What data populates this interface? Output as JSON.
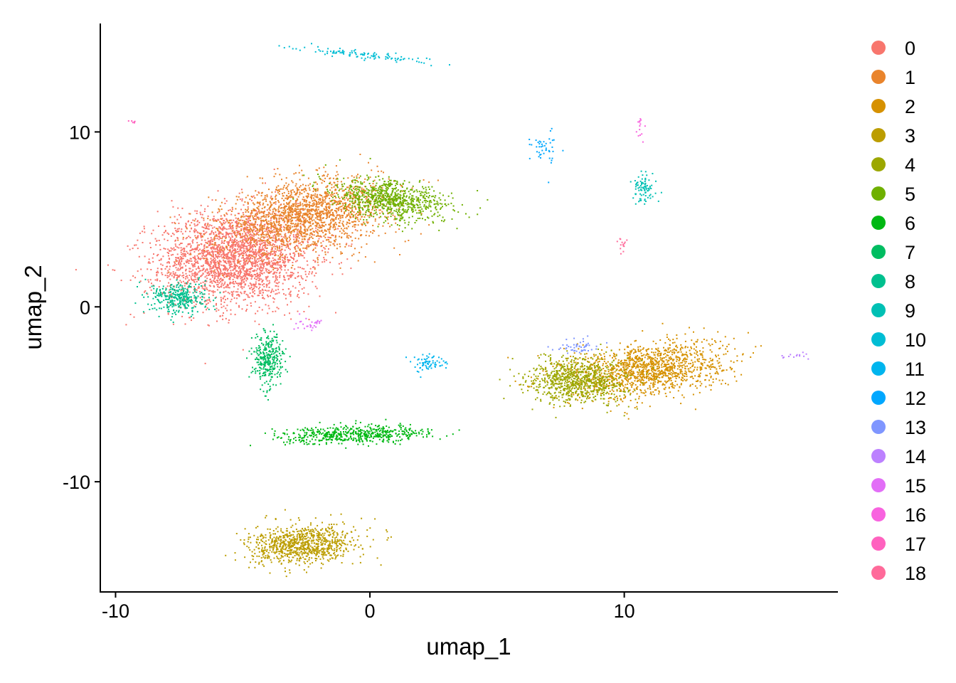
{
  "chart_data": {
    "type": "scatter",
    "title": "",
    "xlabel": "umap_1",
    "ylabel": "umap_2",
    "xlim": [
      -10.6,
      18.4
    ],
    "ylim": [
      -16.3,
      16.2
    ],
    "x_ticks": [
      -10,
      0,
      10
    ],
    "x_tick_labels": [
      "-10",
      "0",
      "10"
    ],
    "y_ticks": [
      10,
      0,
      -10
    ],
    "y_tick_labels": [
      "10",
      "0",
      "-10"
    ],
    "grid": false,
    "legend_position": "right",
    "legend": [
      {
        "label": "0",
        "color": "#F8766D"
      },
      {
        "label": "1",
        "color": "#E9842C"
      },
      {
        "label": "2",
        "color": "#D69100"
      },
      {
        "label": "3",
        "color": "#BC9D00"
      },
      {
        "label": "4",
        "color": "#9CA700"
      },
      {
        "label": "5",
        "color": "#6FB000"
      },
      {
        "label": "6",
        "color": "#00B813"
      },
      {
        "label": "7",
        "color": "#00BD61"
      },
      {
        "label": "8",
        "color": "#00C08E"
      },
      {
        "label": "9",
        "color": "#00C0B4"
      },
      {
        "label": "10",
        "color": "#00BDD4"
      },
      {
        "label": "11",
        "color": "#00B5EE"
      },
      {
        "label": "12",
        "color": "#00A7FF"
      },
      {
        "label": "13",
        "color": "#7F96FF"
      },
      {
        "label": "14",
        "color": "#BC81FF"
      },
      {
        "label": "15",
        "color": "#E26EF7"
      },
      {
        "label": "16",
        "color": "#F863DF"
      },
      {
        "label": "17",
        "color": "#FF62BF"
      },
      {
        "label": "18",
        "color": "#FF6A9A"
      }
    ],
    "clusters": [
      {
        "name": "0",
        "cx": -5.3,
        "cy": 2.8,
        "sx": 1.55,
        "sy": 1.35,
        "rot": 12,
        "n": 2600
      },
      {
        "name": "1",
        "cx": -2.5,
        "cy": 5.2,
        "sx": 1.7,
        "sy": 0.95,
        "rot": 18,
        "n": 1900
      },
      {
        "name": "2",
        "cx": 10.8,
        "cy": -3.6,
        "sx": 1.6,
        "sy": 0.75,
        "rot": 10,
        "n": 1400
      },
      {
        "name": "3",
        "cx": -2.6,
        "cy": -13.6,
        "sx": 1.05,
        "sy": 0.55,
        "rot": 8,
        "n": 900
      },
      {
        "name": "4",
        "cx": 8.2,
        "cy": -4.2,
        "sx": 0.95,
        "sy": 0.65,
        "rot": 0,
        "n": 800
      },
      {
        "name": "5",
        "cx": 0.8,
        "cy": 6.1,
        "sx": 1.15,
        "sy": 0.55,
        "rot": -14,
        "n": 800
      },
      {
        "name": "6",
        "cx": -0.5,
        "cy": -7.3,
        "sx": 1.45,
        "sy": 0.25,
        "rot": 2,
        "n": 550
      },
      {
        "name": "7",
        "cx": -4.0,
        "cy": -3.0,
        "sx": 0.3,
        "sy": 0.75,
        "rot": 0,
        "n": 330
      },
      {
        "name": "8",
        "cx": -7.5,
        "cy": 0.5,
        "sx": 0.55,
        "sy": 0.45,
        "rot": 0,
        "n": 330
      },
      {
        "name": "9",
        "cx": 10.8,
        "cy": 6.8,
        "sx": 0.22,
        "sy": 0.4,
        "rot": 0,
        "n": 90
      },
      {
        "name": "10",
        "cx": -0.2,
        "cy": 14.4,
        "sx": 1.4,
        "sy": 0.12,
        "rot": -8,
        "n": 110
      },
      {
        "name": "11",
        "cx": 2.3,
        "cy": -3.2,
        "sx": 0.28,
        "sy": 0.22,
        "rot": 0,
        "n": 70
      },
      {
        "name": "12",
        "cx": 6.9,
        "cy": 9.1,
        "sx": 0.3,
        "sy": 0.5,
        "rot": 0,
        "n": 45
      },
      {
        "name": "13",
        "cx": 8.2,
        "cy": -2.3,
        "sx": 0.4,
        "sy": 0.22,
        "rot": 0,
        "n": 50
      },
      {
        "name": "14",
        "cx": 16.8,
        "cy": -2.8,
        "sx": 0.3,
        "sy": 0.07,
        "rot": 10,
        "n": 14
      },
      {
        "name": "15",
        "cx": -2.3,
        "cy": -1.0,
        "sx": 0.35,
        "sy": 0.2,
        "rot": 0,
        "n": 28
      },
      {
        "name": "16",
        "cx": 10.6,
        "cy": 10.4,
        "sx": 0.1,
        "sy": 0.35,
        "rot": 0,
        "n": 14
      },
      {
        "name": "17",
        "cx": -9.3,
        "cy": 10.6,
        "sx": 0.12,
        "sy": 0.06,
        "rot": 0,
        "n": 6
      },
      {
        "name": "18",
        "cx": 9.9,
        "cy": 3.6,
        "sx": 0.08,
        "sy": 0.3,
        "rot": 0,
        "n": 14
      }
    ]
  }
}
